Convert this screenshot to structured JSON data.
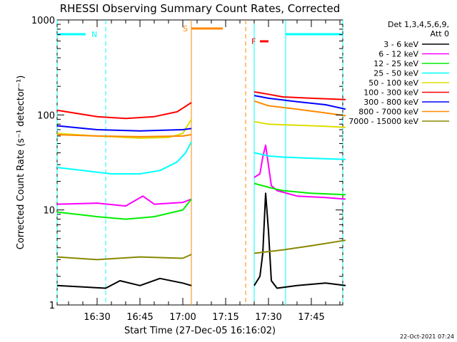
{
  "chart_data": {
    "type": "line",
    "title": "RHESSI Observing Summary Count Rates, Corrected",
    "ylabel": "Corrected Count Rate (s⁻¹ detector⁻¹)",
    "xlabel": "Start Time (27-Dec-05 16:16:02)",
    "y_scale": "log",
    "ylim": [
      1,
      1000
    ],
    "y_ticks": [
      {
        "value": 1,
        "label": "1"
      },
      {
        "value": 10,
        "label": "10"
      },
      {
        "value": 100,
        "label": "100"
      },
      {
        "value": 1000,
        "label": "1000"
      }
    ],
    "xlim": [
      "16:16",
      "17:56"
    ],
    "x_ticks": [
      "16:30",
      "16:45",
      "17:00",
      "17:15",
      "17:30",
      "17:45"
    ],
    "grid": false,
    "legend_position": "right",
    "legend_header": [
      "Det 1,3,4,5,6,9,",
      "Att 0"
    ],
    "series": [
      {
        "name": "3 - 6 keV",
        "color": "#000000",
        "segments": [
          {
            "x": [
              "16:16",
              "16:33",
              "16:38",
              "16:45",
              "16:52",
              "17:00",
              "17:03"
            ],
            "y": [
              1.6,
              1.5,
              1.8,
              1.6,
              1.9,
              1.7,
              1.6
            ]
          },
          {
            "x": [
              "17:25",
              "17:27",
              "17:28",
              "17:29",
              "17:30",
              "17:31",
              "17:33",
              "17:40",
              "17:50",
              "17:57"
            ],
            "y": [
              1.6,
              2.0,
              3.5,
              15,
              6,
              1.8,
              1.5,
              1.6,
              1.7,
              1.6
            ]
          }
        ]
      },
      {
        "name": "6 - 12 keV",
        "color": "#ff00ff",
        "segments": [
          {
            "x": [
              "16:16",
              "16:30",
              "16:40",
              "16:46",
              "16:50",
              "17:00",
              "17:03"
            ],
            "y": [
              11.5,
              11.8,
              11,
              14,
              11.5,
              12,
              13
            ]
          },
          {
            "x": [
              "17:25",
              "17:27",
              "17:28",
              "17:29",
              "17:31",
              "17:33",
              "17:40",
              "17:50",
              "17:57"
            ],
            "y": [
              22,
              24,
              36,
              48,
              18,
              16,
              14,
              13.5,
              13
            ]
          }
        ]
      },
      {
        "name": "12 - 25 keV",
        "color": "#00ee00",
        "segments": [
          {
            "x": [
              "16:16",
              "16:30",
              "16:40",
              "16:50",
              "17:00",
              "17:03"
            ],
            "y": [
              9.5,
              8.5,
              8.0,
              8.5,
              10,
              13
            ]
          },
          {
            "x": [
              "17:25",
              "17:28",
              "17:31",
              "17:35",
              "17:45",
              "17:57"
            ],
            "y": [
              19,
              18,
              17,
              16,
              15,
              14.5
            ]
          }
        ]
      },
      {
        "name": "25 - 50 keV",
        "color": "#00ffff",
        "segments": [
          {
            "x": [
              "16:16",
              "16:25",
              "16:35",
              "16:45",
              "16:52",
              "16:58",
              "17:01",
              "17:03"
            ],
            "y": [
              28,
              26,
              24,
              24,
              26,
              32,
              40,
              52
            ]
          },
          {
            "x": [
              "17:25",
              "17:30",
              "17:35",
              "17:45",
              "17:57"
            ],
            "y": [
              40,
              37,
              36,
              35,
              34
            ]
          }
        ]
      },
      {
        "name": "50 - 100 keV",
        "color": "#dddd00",
        "segments": [
          {
            "x": [
              "16:16",
              "16:30",
              "16:45",
              "16:55",
              "17:00",
              "17:03"
            ],
            "y": [
              64,
              60,
              57,
              58,
              64,
              90
            ]
          },
          {
            "x": [
              "17:25",
              "17:30",
              "17:40",
              "17:50",
              "17:57"
            ],
            "y": [
              85,
              80,
              78,
              76,
              74
            ]
          }
        ]
      },
      {
        "name": "100 - 300 keV",
        "color": "#ff0000",
        "segments": [
          {
            "x": [
              "16:16",
              "16:30",
              "16:40",
              "16:50",
              "16:58",
              "17:03"
            ],
            "y": [
              112,
              96,
              92,
              96,
              108,
              135
            ]
          },
          {
            "x": [
              "17:25",
              "17:30",
              "17:35",
              "17:45",
              "17:57"
            ],
            "y": [
              175,
              165,
              155,
              150,
              145
            ]
          }
        ]
      },
      {
        "name": "300 - 800 keV",
        "color": "#0000ff",
        "segments": [
          {
            "x": [
              "16:16",
              "16:30",
              "16:45",
              "17:00",
              "17:03"
            ],
            "y": [
              77,
              70,
              68,
              70,
              72
            ]
          },
          {
            "x": [
              "17:25",
              "17:30",
              "17:40",
              "17:50",
              "17:57"
            ],
            "y": [
              160,
              150,
              138,
              128,
              115
            ]
          }
        ]
      },
      {
        "name": "800 - 7000 keV",
        "color": "#ff8800",
        "segments": [
          {
            "x": [
              "16:16",
              "16:30",
              "16:45",
              "17:00",
              "17:03"
            ],
            "y": [
              62,
              60,
              59,
              60,
              62
            ]
          },
          {
            "x": [
              "17:25",
              "17:30",
              "17:40",
              "17:50",
              "17:57"
            ],
            "y": [
              140,
              125,
              115,
              105,
              98
            ]
          }
        ]
      },
      {
        "name": "7000 - 15000 keV",
        "color": "#888800",
        "segments": [
          {
            "x": [
              "16:16",
              "16:30",
              "16:45",
              "17:00",
              "17:03"
            ],
            "y": [
              3.2,
              3.0,
              3.2,
              3.1,
              3.4
            ]
          },
          {
            "x": [
              "17:25",
              "17:35",
              "17:45",
              "17:57"
            ],
            "y": [
              3.5,
              3.8,
              4.2,
              4.8
            ]
          }
        ]
      }
    ],
    "annotations": {
      "night_bars": [
        {
          "label": "N",
          "start": "16:16",
          "end": "16:26",
          "color": "#00ffff"
        },
        {
          "label": "",
          "start": "17:36",
          "end": "17:56",
          "color": "#00ffff"
        }
      ],
      "saa_bar": {
        "label": "S",
        "start": "17:03",
        "end": "17:14",
        "color": "#ff8800"
      },
      "flare_bar": {
        "label": "F",
        "start": "17:27",
        "end": "17:30",
        "color": "#ff0000"
      },
      "vlines": [
        {
          "time": "16:16",
          "color": "#00ffff",
          "style": "dashed"
        },
        {
          "time": "16:33",
          "color": "#00ffff",
          "style": "dashed"
        },
        {
          "time": "17:36",
          "color": "#00ffff",
          "style": "solid"
        },
        {
          "time": "17:56",
          "color": "#00ffff",
          "style": "dashed"
        },
        {
          "time": "17:25",
          "color": "#00ffff",
          "style": "solid"
        },
        {
          "time": "17:03",
          "color": "#ff8800",
          "style": "solid"
        },
        {
          "time": "17:22",
          "color": "#ff8800",
          "style": "dashed"
        }
      ]
    }
  },
  "footer_date": "22-Oct-2021 07:24"
}
